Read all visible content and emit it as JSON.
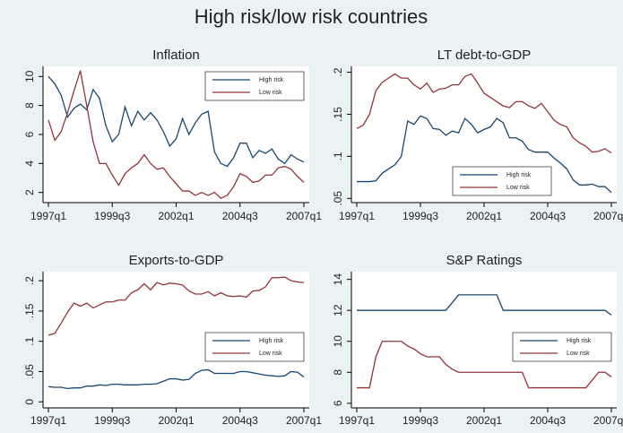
{
  "title": "High risk/low risk countries",
  "chart_data": [
    {
      "type": "line",
      "title": "Inflation",
      "legend": "top-right",
      "x": [
        148,
        149,
        150,
        151,
        152,
        153,
        154,
        155,
        156,
        157,
        158,
        159,
        160,
        161,
        162,
        163,
        164,
        165,
        166,
        167,
        168,
        169,
        170,
        171,
        172,
        173,
        174,
        175,
        176,
        177,
        178,
        179,
        180,
        181,
        182,
        183,
        184,
        185,
        186,
        187,
        188
      ],
      "xlim": [
        148,
        188
      ],
      "xticks": [
        {
          "value": 148,
          "label": "1997q1"
        },
        {
          "value": 158,
          "label": "1999q3"
        },
        {
          "value": 168,
          "label": "2002q1"
        },
        {
          "value": 178,
          "label": "2004q3"
        },
        {
          "value": 188,
          "label": "2007q1"
        }
      ],
      "ylim": [
        1.3,
        10.7
      ],
      "yticks": [
        2,
        4,
        6,
        8,
        10
      ],
      "series": [
        {
          "name": "High risk",
          "color": "#1a476f",
          "values": [
            10,
            9.5,
            8.7,
            7.2,
            7.8,
            8.1,
            7.7,
            9.1,
            8.5,
            6.6,
            5.5,
            6.0,
            7.9,
            6.6,
            7.6,
            7.0,
            7.5,
            7.0,
            6.2,
            5.2,
            5.7,
            7.1,
            6.0,
            6.8,
            7.4,
            7.6,
            4.8,
            4.0,
            3.8,
            4.4,
            5.4,
            5.4,
            4.4,
            4.9,
            4.7,
            5.0,
            4.3,
            4.0,
            4.6,
            4.3,
            4.1
          ]
        },
        {
          "name": "Low risk",
          "color": "#90353b",
          "values": [
            7.0,
            5.6,
            6.2,
            7.5,
            9.0,
            10.4,
            8.0,
            5.5,
            4.0,
            4.0,
            3.2,
            2.5,
            3.3,
            3.7,
            4.0,
            4.6,
            4.0,
            3.6,
            3.7,
            3.1,
            2.6,
            2.1,
            2.1,
            1.8,
            2.0,
            1.8,
            2.0,
            1.6,
            1.8,
            2.4,
            3.3,
            3.1,
            2.7,
            2.8,
            3.2,
            3.2,
            3.7,
            3.8,
            3.6,
            3.1,
            2.7
          ]
        }
      ]
    },
    {
      "type": "line",
      "title": "LT debt-to-GDP",
      "legend": "bottom",
      "x": [
        148,
        149,
        150,
        151,
        152,
        153,
        154,
        155,
        156,
        157,
        158,
        159,
        160,
        161,
        162,
        163,
        164,
        165,
        166,
        167,
        168,
        169,
        170,
        171,
        172,
        173,
        174,
        175,
        176,
        177,
        178,
        179,
        180,
        181,
        182,
        183,
        184,
        185,
        186,
        187,
        188
      ],
      "xlim": [
        148,
        188
      ],
      "xticks": [
        {
          "value": 148,
          "label": "1997q1"
        },
        {
          "value": 158,
          "label": "1999q3"
        },
        {
          "value": 168,
          "label": "2002q1"
        },
        {
          "value": 178,
          "label": "2004q3"
        },
        {
          "value": 188,
          "label": "2007q1"
        }
      ],
      "ylim": [
        0.045,
        0.207
      ],
      "yticks": [
        {
          "value": 0.05,
          "label": ".05"
        },
        {
          "value": 0.1,
          "label": ".1"
        },
        {
          "value": 0.15,
          "label": ".15"
        },
        {
          "value": 0.2,
          "label": ".2"
        }
      ],
      "series": [
        {
          "name": "High risk",
          "color": "#1a476f",
          "values": [
            0.07,
            0.07,
            0.07,
            0.071,
            0.08,
            0.085,
            0.09,
            0.1,
            0.142,
            0.138,
            0.148,
            0.145,
            0.133,
            0.132,
            0.125,
            0.13,
            0.128,
            0.145,
            0.138,
            0.128,
            0.132,
            0.135,
            0.145,
            0.14,
            0.122,
            0.122,
            0.118,
            0.108,
            0.105,
            0.105,
            0.105,
            0.098,
            0.092,
            0.085,
            0.072,
            0.066,
            0.066,
            0.067,
            0.064,
            0.064,
            0.057
          ]
        },
        {
          "name": "Low risk",
          "color": "#90353b",
          "values": [
            0.133,
            0.137,
            0.15,
            0.178,
            0.188,
            0.193,
            0.198,
            0.193,
            0.193,
            0.185,
            0.18,
            0.187,
            0.176,
            0.18,
            0.181,
            0.185,
            0.185,
            0.195,
            0.198,
            0.187,
            0.175,
            0.17,
            0.165,
            0.16,
            0.158,
            0.165,
            0.165,
            0.16,
            0.157,
            0.163,
            0.153,
            0.143,
            0.138,
            0.135,
            0.122,
            0.116,
            0.112,
            0.105,
            0.106,
            0.109,
            0.104
          ]
        }
      ]
    },
    {
      "type": "line",
      "title": "Exports-to-GDP",
      "legend": "right",
      "x": [
        148,
        149,
        150,
        151,
        152,
        153,
        154,
        155,
        156,
        157,
        158,
        159,
        160,
        161,
        162,
        163,
        164,
        165,
        166,
        167,
        168,
        169,
        170,
        171,
        172,
        173,
        174,
        175,
        176,
        177,
        178,
        179,
        180,
        181,
        182,
        183,
        184,
        185,
        186,
        187,
        188
      ],
      "xlim": [
        148,
        188
      ],
      "xticks": [
        {
          "value": 148,
          "label": "1997q1"
        },
        {
          "value": 158,
          "label": "1999q3"
        },
        {
          "value": 168,
          "label": "2002q1"
        },
        {
          "value": 178,
          "label": "2004q3"
        },
        {
          "value": 188,
          "label": "2007q1"
        }
      ],
      "ylim": [
        -0.01,
        0.215
      ],
      "yticks": [
        0,
        {
          "value": 0.05,
          "label": ".05"
        },
        {
          "value": 0.1,
          "label": ".1"
        },
        {
          "value": 0.15,
          "label": ".15"
        },
        {
          "value": 0.2,
          "label": ".2"
        }
      ],
      "series": [
        {
          "name": "High risk",
          "color": "#1a476f",
          "values": [
            0.025,
            0.024,
            0.024,
            0.022,
            0.023,
            0.023,
            0.026,
            0.026,
            0.028,
            0.027,
            0.029,
            0.029,
            0.028,
            0.028,
            0.028,
            0.029,
            0.029,
            0.03,
            0.034,
            0.038,
            0.038,
            0.036,
            0.037,
            0.047,
            0.052,
            0.053,
            0.047,
            0.047,
            0.047,
            0.047,
            0.05,
            0.05,
            0.048,
            0.046,
            0.044,
            0.043,
            0.042,
            0.043,
            0.05,
            0.049,
            0.041
          ]
        },
        {
          "name": "Low risk",
          "color": "#90353b",
          "values": [
            0.11,
            0.113,
            0.13,
            0.148,
            0.163,
            0.158,
            0.163,
            0.155,
            0.16,
            0.165,
            0.165,
            0.168,
            0.168,
            0.18,
            0.185,
            0.195,
            0.185,
            0.197,
            0.193,
            0.196,
            0.195,
            0.193,
            0.183,
            0.178,
            0.178,
            0.182,
            0.175,
            0.18,
            0.175,
            0.174,
            0.175,
            0.173,
            0.183,
            0.184,
            0.19,
            0.205,
            0.205,
            0.206,
            0.2,
            0.198,
            0.197
          ]
        }
      ]
    },
    {
      "type": "line",
      "title": "S&P Ratings",
      "legend": "right",
      "x": [
        148,
        149,
        150,
        151,
        152,
        153,
        154,
        155,
        156,
        157,
        158,
        159,
        160,
        161,
        162,
        163,
        164,
        165,
        166,
        167,
        168,
        169,
        170,
        171,
        172,
        173,
        174,
        175,
        176,
        177,
        178,
        179,
        180,
        181,
        182,
        183,
        184,
        185,
        186,
        187,
        188
      ],
      "xlim": [
        148,
        188
      ],
      "xticks": [
        {
          "value": 148,
          "label": "1997q1"
        },
        {
          "value": 158,
          "label": "1999q3"
        },
        {
          "value": 168,
          "label": "2002q1"
        },
        {
          "value": 178,
          "label": "2004q3"
        },
        {
          "value": 188,
          "label": "2007q1"
        }
      ],
      "ylim": [
        5.7,
        14.5
      ],
      "yticks": [
        6,
        8,
        10,
        12,
        14
      ],
      "series": [
        {
          "name": "High risk",
          "color": "#1a476f",
          "values": [
            12,
            12,
            12,
            12,
            12,
            12,
            12,
            12,
            12,
            12,
            12,
            12,
            12,
            12,
            12,
            12.5,
            13,
            13,
            13,
            13,
            13,
            13,
            13,
            12,
            12,
            12,
            12,
            12,
            12,
            12,
            12,
            12,
            12,
            12,
            12,
            12,
            12,
            12,
            12,
            12,
            11.7
          ]
        },
        {
          "name": "Low risk",
          "color": "#90353b",
          "values": [
            7,
            7,
            7,
            9,
            10,
            10,
            10,
            10,
            9.7,
            9.5,
            9.2,
            9,
            9,
            9,
            8.5,
            8.2,
            8,
            8,
            8,
            8,
            8,
            8,
            8,
            8,
            8,
            8,
            8,
            7,
            7,
            7,
            7,
            7,
            7,
            7,
            7,
            7,
            7,
            7.5,
            8,
            8,
            7.7
          ]
        }
      ]
    }
  ]
}
